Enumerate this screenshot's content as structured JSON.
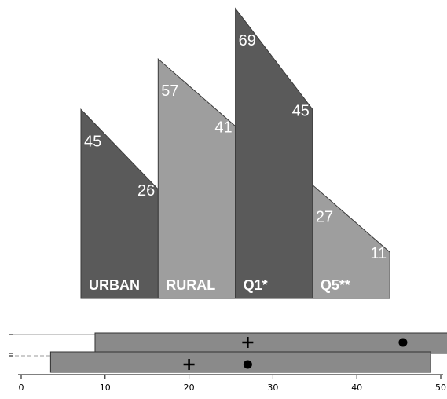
{
  "colors": {
    "dark": "#5a5a5a",
    "light": "#9e9e9e",
    "box": "#8a8a8a",
    "text": "#ffffff",
    "axis": "#000000"
  },
  "chart_data": [
    {
      "type": "area",
      "categories": [
        "URBAN",
        "RURAL",
        "Q1*",
        "Q5**"
      ],
      "series": [
        {
          "values": [
            45,
            57,
            69,
            27
          ]
        },
        {
          "values": [
            26,
            41,
            45,
            11
          ]
        }
      ],
      "fill_colors": [
        "dark",
        "light",
        "dark",
        "light"
      ]
    },
    {
      "type": "box",
      "xlim": [
        0,
        50
      ],
      "x_ticks": [
        0,
        10,
        20,
        30,
        40,
        50
      ],
      "rows": [
        {
          "range": [
            8.8,
            51
          ],
          "whisker_start": 0,
          "mean_marker": 27,
          "point_marker": 45.5
        },
        {
          "range": [
            3.5,
            48.8
          ],
          "whisker_start": 0,
          "mean_marker": 20,
          "point_marker": 27
        }
      ]
    }
  ]
}
